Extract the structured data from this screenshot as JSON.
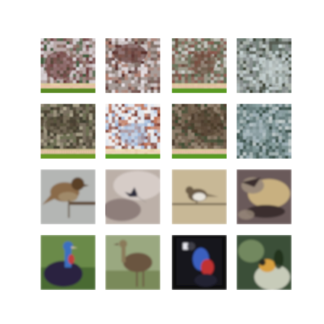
{
  "grid": {
    "rows": 4,
    "cols": 4,
    "tiles": [
      {
        "kind": "generated-noise",
        "palette": [
          "#b9a9a8",
          "#6b3a3a",
          "#3f5a3a",
          "#d8d2d6",
          "#8a6e62"
        ],
        "bottom_strip": true,
        "strip_colors": [
          "#e8d8a0",
          "#f0b0b0",
          "#5a8a20"
        ]
      },
      {
        "kind": "generated-noise",
        "palette": [
          "#a89c98",
          "#5a2e2a",
          "#e6e0e4",
          "#7b6a60",
          "#b08070"
        ],
        "bottom_strip": false
      },
      {
        "kind": "generated-noise",
        "palette": [
          "#9c9a8a",
          "#6a4a3a",
          "#cfd0cc",
          "#5e6a50",
          "#8a5248"
        ],
        "bottom_strip": true,
        "strip_colors": [
          "#e0d0a0",
          "#f0b8b0",
          "#5a9a20"
        ]
      },
      {
        "kind": "generated-noise",
        "palette": [
          "#8a9090",
          "#c8d4d4",
          "#3a4030",
          "#6a7a70",
          "#b0b8b0"
        ],
        "bottom_strip": false
      },
      {
        "kind": "generated-noise",
        "palette": [
          "#7a7060",
          "#4a4030",
          "#6a7050",
          "#b0a890",
          "#3a3a2a"
        ],
        "bottom_strip": true,
        "strip_colors": [
          "#d8c898",
          "#f0c0b0",
          "#6a9a20"
        ]
      },
      {
        "kind": "generated-noise",
        "palette": [
          "#e0e6ee",
          "#a0b8d8",
          "#7a3020",
          "#c07050",
          "#f4f0ee"
        ],
        "bottom_strip": true,
        "strip_colors": [
          "#f0e0b0",
          "#f0c8c0",
          "#5aa020"
        ]
      },
      {
        "kind": "generated-noise",
        "palette": [
          "#7a6a58",
          "#4a3a2a",
          "#6e5a48",
          "#9a8a78",
          "#3a4a30"
        ],
        "bottom_strip": true,
        "strip_colors": [
          "#e0d0a0",
          "#f0b8b0",
          "#5a9a20"
        ]
      },
      {
        "kind": "generated-noise",
        "palette": [
          "#6a8080",
          "#a8b8c0",
          "#3a5048",
          "#8aa0a0",
          "#c8d0d0"
        ],
        "bottom_strip": false
      },
      {
        "kind": "photo",
        "scene": "sparrow-on-branch",
        "bg": "#b4b6b4",
        "colors": [
          "#8a6a48",
          "#5a4028",
          "#a08a6a"
        ]
      },
      {
        "kind": "photo",
        "scene": "swallow-in-sky",
        "bg": "#bcb0a8",
        "colors": [
          "#7a6a66",
          "#2a2a3a",
          "#e8e0dc"
        ]
      },
      {
        "kind": "photo",
        "scene": "pipit-on-wire",
        "bg": "#c8b896",
        "colors": [
          "#6a5a44",
          "#e8e4dc",
          "#8a7a60"
        ]
      },
      {
        "kind": "photo",
        "scene": "waxwing-closeup",
        "bg": "#6a5a5a",
        "colors": [
          "#c8b080",
          "#3a2e2e",
          "#9a8a7a"
        ]
      },
      {
        "kind": "photo",
        "scene": "cassowary-green",
        "bg": "#6a8a4a",
        "colors": [
          "#2a2040",
          "#3a70c0",
          "#c04040"
        ]
      },
      {
        "kind": "photo",
        "scene": "emu-field",
        "bg": "#9aa880",
        "colors": [
          "#6a5440",
          "#8a7a5a",
          "#c8c0a0"
        ]
      },
      {
        "kind": "photo",
        "scene": "cassowary-dark",
        "bg": "#0a0a10",
        "colors": [
          "#3a60c0",
          "#c03030",
          "#e8e8f0"
        ]
      },
      {
        "kind": "photo",
        "scene": "bird-foliage",
        "bg": "#3a5038",
        "colors": [
          "#d8a040",
          "#8aa070",
          "#e0e0d0"
        ]
      }
    ]
  }
}
